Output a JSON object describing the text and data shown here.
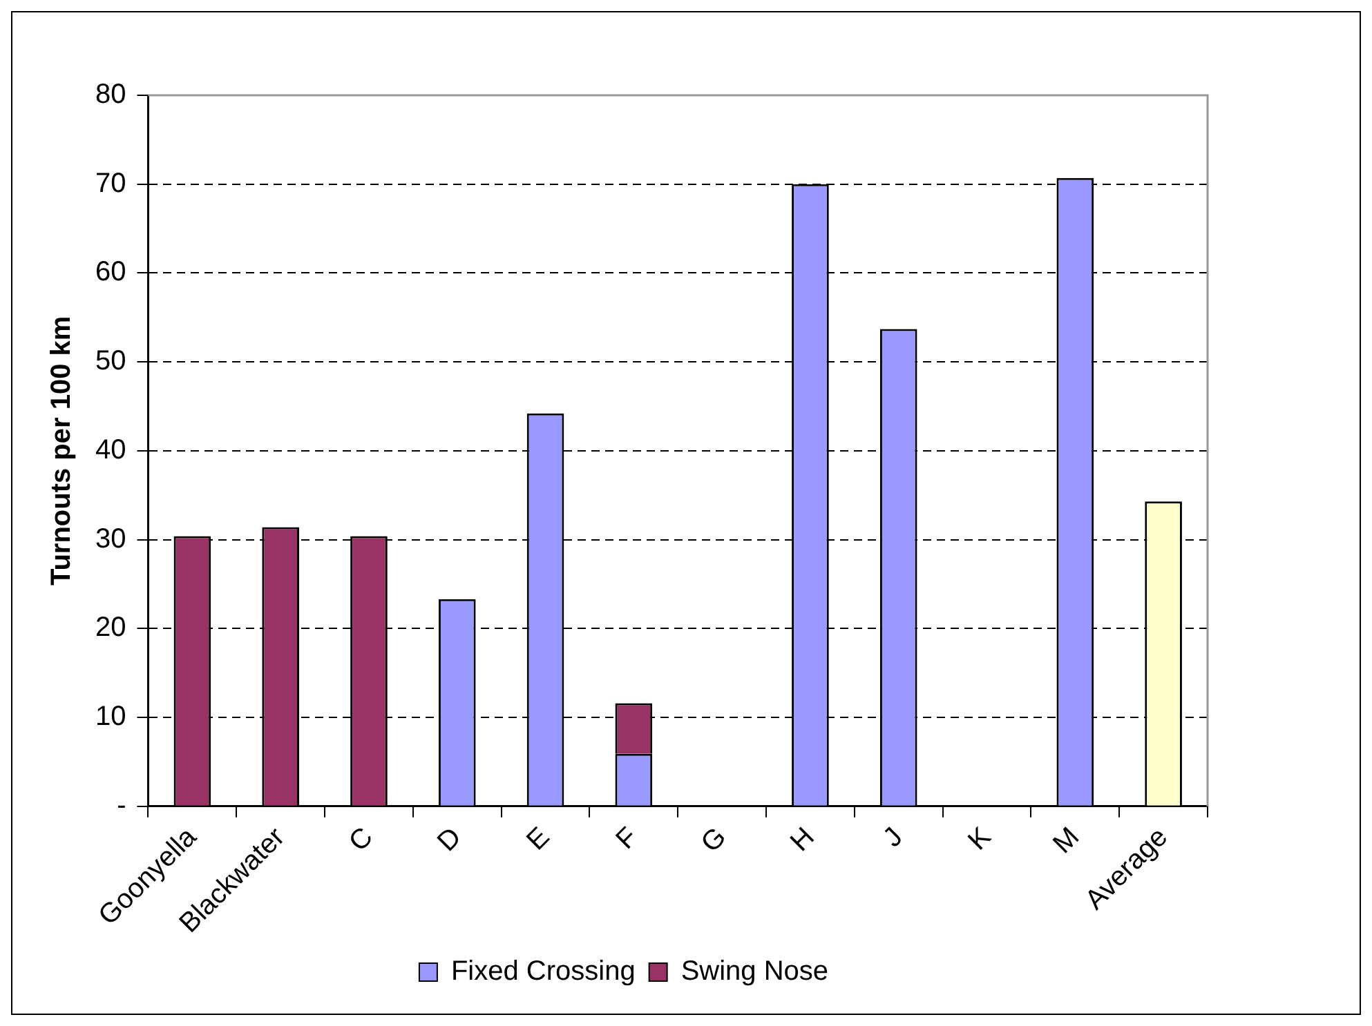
{
  "chart_data": {
    "type": "bar",
    "ylabel": "Turnouts per 100 km",
    "categories": [
      "Goonyella",
      "Blackwater",
      "C",
      "D",
      "E",
      "F",
      "G",
      "H",
      "J",
      "K",
      "M",
      "Average"
    ],
    "stacked": true,
    "series": [
      {
        "name": "Fixed Crossing",
        "color": "#9999ff",
        "values": [
          null,
          null,
          null,
          23.3,
          44.2,
          5.9,
          null,
          70,
          53.7,
          null,
          70.7,
          null
        ]
      },
      {
        "name": "Swing Nose",
        "color": "#993366",
        "values": [
          30.4,
          31.4,
          30.4,
          null,
          null,
          5.7,
          null,
          null,
          null,
          null,
          null,
          null
        ]
      },
      {
        "color": "#ffffcc",
        "values": [
          null,
          null,
          null,
          null,
          null,
          null,
          null,
          null,
          null,
          null,
          null,
          34.3
        ]
      }
    ],
    "ylim": [
      0,
      80
    ],
    "yticks": [
      {
        "value": 0,
        "label": "-"
      },
      10,
      20,
      30,
      40,
      50,
      60,
      70,
      80
    ],
    "grid": "y",
    "legend": "bottom"
  }
}
